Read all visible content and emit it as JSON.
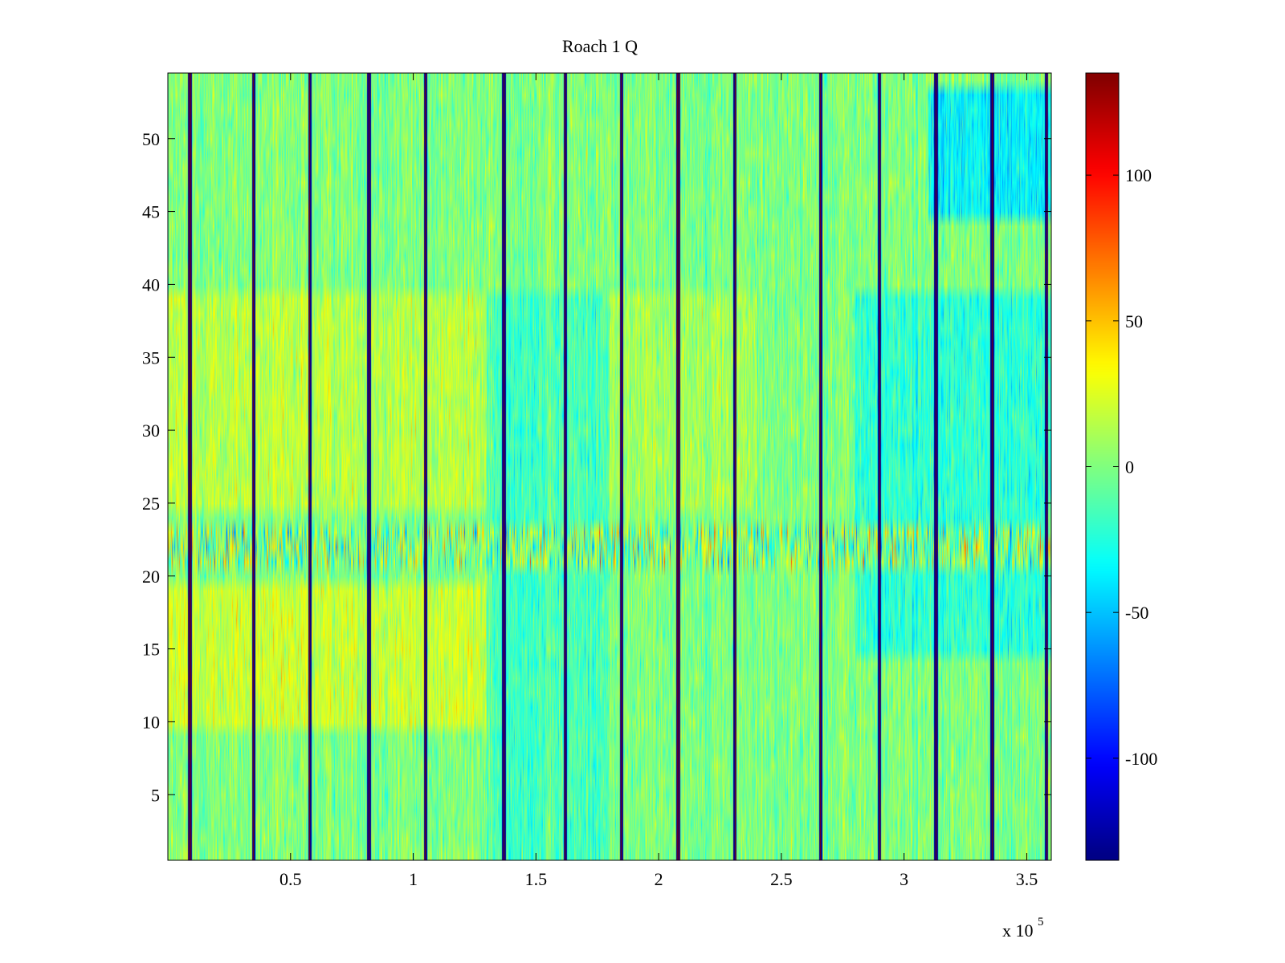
{
  "chart_data": {
    "type": "heatmap",
    "title": "Roach 1 Q",
    "xlabel": "",
    "ylabel": "",
    "colormap": "jet",
    "x_multiplier_label": "x 10",
    "x_multiplier_exponent": "5",
    "xlim": [
      0,
      360000
    ],
    "ylim": [
      0.5,
      54.5
    ],
    "xticks": [
      50000,
      100000,
      150000,
      200000,
      250000,
      300000,
      350000
    ],
    "xtick_labels": [
      "0.5",
      "1",
      "1.5",
      "2",
      "2.5",
      "3",
      "3.5"
    ],
    "yticks": [
      5,
      10,
      15,
      20,
      25,
      30,
      35,
      40,
      45,
      50
    ],
    "ytick_labels": [
      "5",
      "10",
      "15",
      "20",
      "25",
      "30",
      "35",
      "40",
      "45",
      "50"
    ],
    "colorbar": {
      "range": [
        -135,
        135
      ],
      "ticks": [
        -100,
        -50,
        0,
        50,
        100
      ],
      "tick_labels": [
        "-100",
        "-50",
        "0",
        "50",
        "100"
      ]
    },
    "rows": 54,
    "spike_columns_x": [
      9000,
      35000,
      58000,
      82000,
      105000,
      137000,
      162000,
      185000,
      208000,
      231000,
      266000,
      290000,
      313000,
      336000,
      358000
    ],
    "noisy_band_rows": [
      21,
      22,
      23
    ],
    "regions": [
      {
        "x_range": [
          0,
          130000
        ],
        "y_range": [
          25,
          40
        ],
        "mean": 15
      },
      {
        "x_range": [
          0,
          130000
        ],
        "y_range": [
          10,
          20
        ],
        "mean": 20
      },
      {
        "x_range": [
          130000,
          180000
        ],
        "y_range": [
          0,
          40
        ],
        "mean": -15
      },
      {
        "x_range": [
          180000,
          240000
        ],
        "y_range": [
          25,
          40
        ],
        "mean": 10
      },
      {
        "x_range": [
          280000,
          360000
        ],
        "y_range": [
          15,
          40
        ],
        "mean": -22
      },
      {
        "x_range": [
          310000,
          360000
        ],
        "y_range": [
          45,
          54
        ],
        "mean": -35
      }
    ]
  }
}
